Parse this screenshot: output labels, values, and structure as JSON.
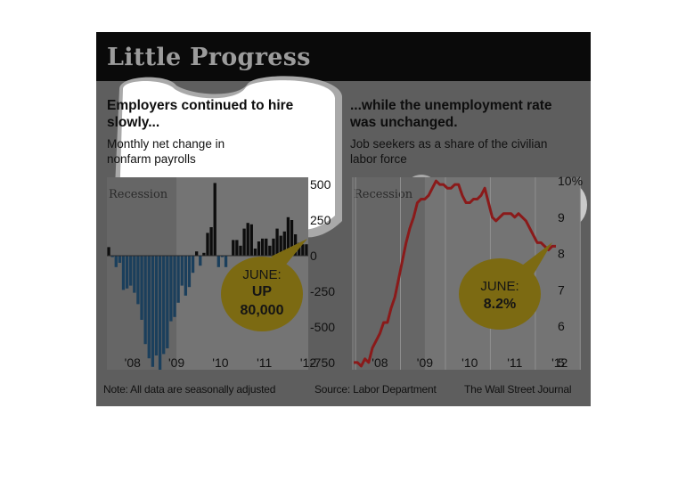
{
  "title": "Little Progress",
  "left": {
    "heading_line1": "Employers continued to hire",
    "heading_line2": "slowly...",
    "sub_line1": "Monthly net change in",
    "sub_line2": "nonfarm payrolls",
    "recession_label": "Recession",
    "callout_line1": "JUNE:",
    "callout_line2": "UP",
    "callout_line3": "80,000"
  },
  "right": {
    "heading_line1": "...while the unemployment rate",
    "heading_line2": "was unchanged.",
    "sub_line1": "Job seekers as a share of the civilian",
    "sub_line2": "labor force",
    "recession_label": "Recession",
    "callout_line1": "JUNE:",
    "callout_line2": "8.2%"
  },
  "footer": {
    "note": "Note: All data are seasonally adjusted",
    "source": "Source: Labor Department",
    "credit": "The Wall Street Journal"
  },
  "colors": {
    "header_bg": "#0a0a0a",
    "panel_bg": "#5e5e5e",
    "plot_bg": "#7a7a7a",
    "recession_shade": "#6b6b6b",
    "negative_bar": "#1b3f5c",
    "positive_bar": "#0d0d0d",
    "unemployment_line": "#8a1a1a",
    "callout_fill": "#7c6a12",
    "highlight": "#ffffff"
  },
  "chart_data": [
    {
      "type": "bar",
      "title": "Employers continued to hire slowly...",
      "subtitle": "Monthly net change in nonfarm payrolls",
      "x_start": "2007-12",
      "x_tick_labels": [
        "'08",
        "'09",
        "'10",
        "'11",
        "'12"
      ],
      "y_tick_labels": [
        "500",
        "250",
        "0",
        "-250",
        "-500",
        "-750"
      ],
      "ylim": [
        -800,
        550
      ],
      "recession": [
        "2007-12",
        "2009-06"
      ],
      "annotation": "JUNE: UP 80,000",
      "values": [
        60,
        -10,
        -80,
        -50,
        -240,
        -230,
        -210,
        -260,
        -340,
        -450,
        -620,
        -720,
        -780,
        -700,
        -800,
        -690,
        -650,
        -460,
        -430,
        -330,
        -210,
        -280,
        -220,
        -120,
        30,
        -70,
        20,
        160,
        200,
        510,
        -80,
        -10,
        -80,
        0,
        110,
        110,
        70,
        190,
        230,
        220,
        50,
        100,
        120,
        120,
        70,
        120,
        190,
        140,
        170,
        270,
        250,
        150,
        90,
        80,
        80
      ]
    },
    {
      "type": "line",
      "title": "...while the unemployment rate was unchanged.",
      "subtitle": "Job seekers as a share of the civilian labor force",
      "x_start": "2007-12",
      "x_tick_labels": [
        "'08",
        "'09",
        "'10",
        "'11",
        "'12"
      ],
      "y_tick_labels": [
        "10%",
        "9",
        "8",
        "7",
        "6",
        "5"
      ],
      "ylim": [
        4.8,
        10.1
      ],
      "recession": [
        "2007-12",
        "2009-06"
      ],
      "annotation": "JUNE: 8.2%",
      "values": [
        5.0,
        5.0,
        4.9,
        5.1,
        5.0,
        5.4,
        5.6,
        5.8,
        6.1,
        6.1,
        6.5,
        6.8,
        7.3,
        7.8,
        8.3,
        8.7,
        9.0,
        9.4,
        9.5,
        9.5,
        9.6,
        9.8,
        10.0,
        9.9,
        9.9,
        9.8,
        9.8,
        9.9,
        9.9,
        9.6,
        9.4,
        9.4,
        9.5,
        9.5,
        9.6,
        9.8,
        9.4,
        9.0,
        8.9,
        9.0,
        9.1,
        9.1,
        9.1,
        9.0,
        9.1,
        9.0,
        8.9,
        8.7,
        8.5,
        8.3,
        8.3,
        8.2,
        8.1,
        8.2,
        8.2
      ]
    }
  ]
}
